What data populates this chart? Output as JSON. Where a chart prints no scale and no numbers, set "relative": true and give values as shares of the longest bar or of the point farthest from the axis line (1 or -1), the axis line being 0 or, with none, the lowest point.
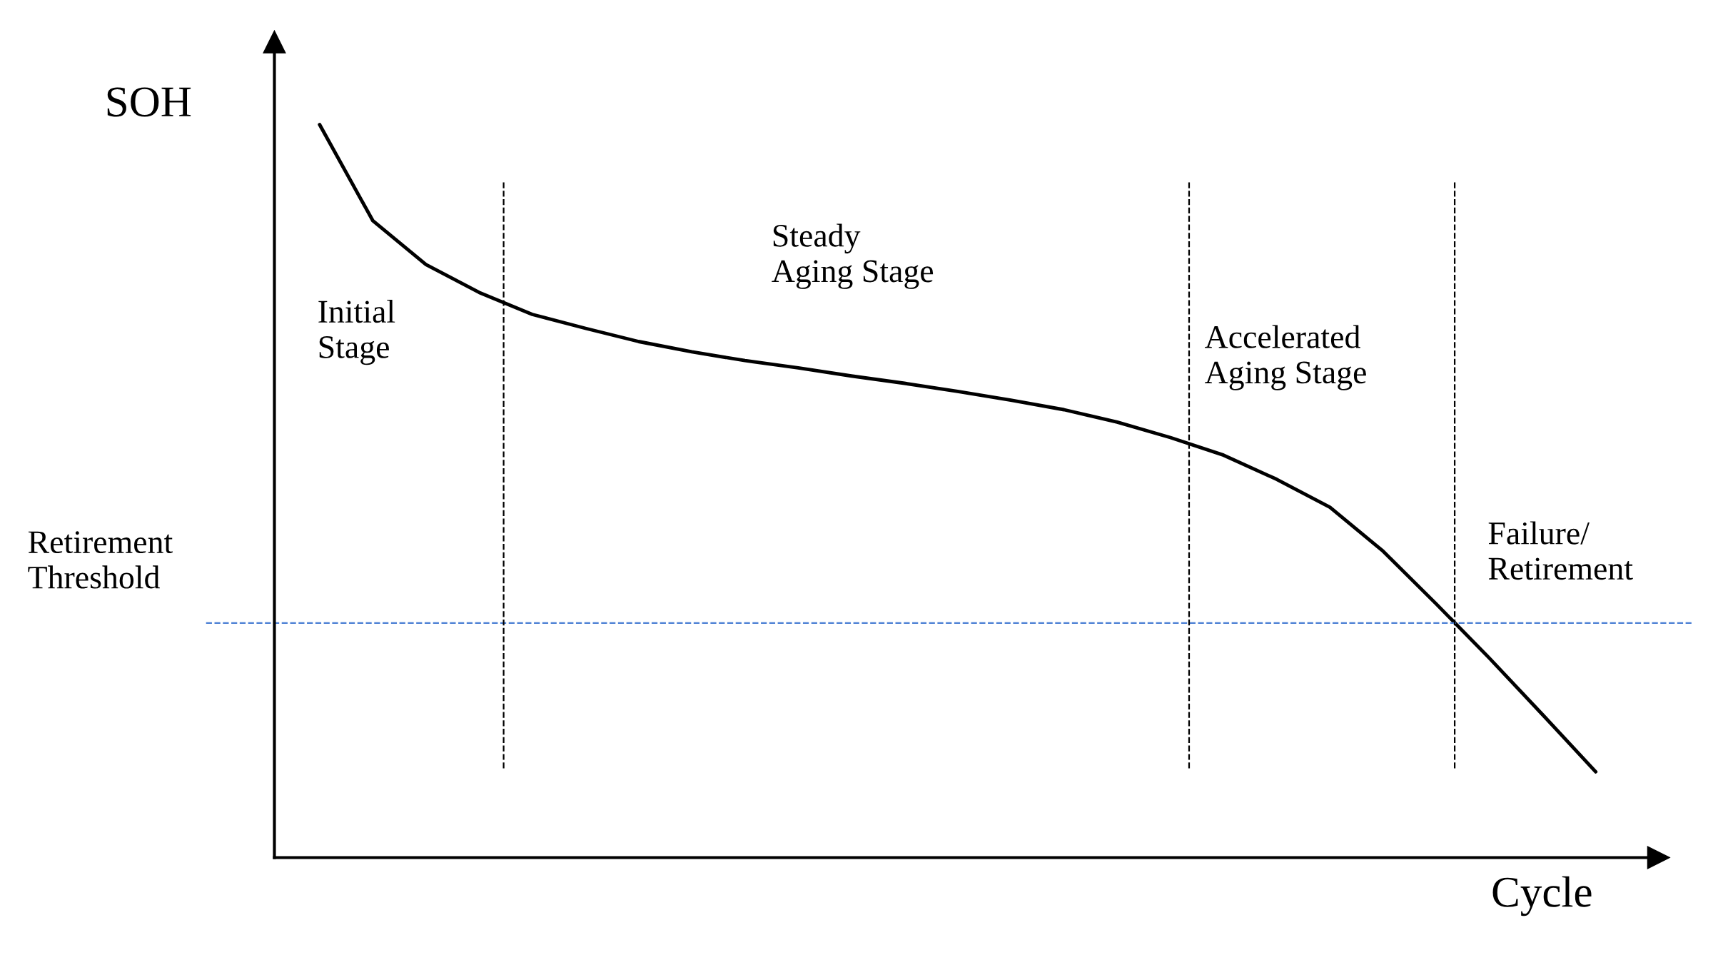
{
  "chart_data": {
    "type": "line",
    "relative": true,
    "xlabel": "Cycle",
    "ylabel": "SOH",
    "categories": [
      null,
      null,
      null,
      null,
      null,
      null,
      null,
      null,
      null,
      null,
      null,
      null,
      null,
      null,
      null,
      null,
      null,
      null,
      null,
      null,
      null,
      null,
      null,
      null,
      null
    ],
    "series": [
      {
        "color": "#000000",
        "values": [
          1.0,
          0.869,
          0.809,
          0.771,
          0.741,
          0.722,
          0.704,
          0.69,
          0.678,
          0.668,
          0.657,
          0.647,
          0.636,
          0.624,
          0.611,
          0.594,
          0.573,
          0.549,
          0.516,
          0.478,
          0.418,
          0.346,
          0.272,
          0.195,
          0.117
        ]
      }
    ],
    "ref_lines": [
      {
        "axis": "y",
        "value": 0.32,
        "label": "Retirement\nThreshold",
        "color": "#4a7fd4",
        "line_style": "dashed"
      }
    ],
    "annotations": [
      "Initial\nStage",
      "Steady\nAging Stage",
      "Accelerated\nAging Stage",
      "Failure/\nRetirement"
    ],
    "legend": false,
    "marker": "none",
    "line_style": "solid"
  }
}
